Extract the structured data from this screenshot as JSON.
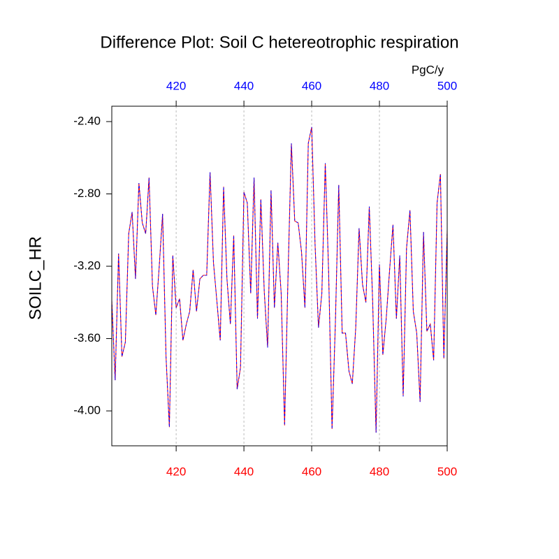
{
  "chart_data": {
    "type": "line",
    "title": "Difference Plot: Soil C hetereotrophic respiration",
    "ylabel": "SOILC_HR",
    "top_axis_label": "PgC/y",
    "x": [
      401,
      402,
      403,
      404,
      405,
      406,
      407,
      408,
      409,
      410,
      411,
      412,
      413,
      414,
      415,
      416,
      417,
      418,
      419,
      420,
      421,
      422,
      423,
      424,
      425,
      426,
      427,
      428,
      429,
      430,
      431,
      432,
      433,
      434,
      435,
      436,
      437,
      438,
      439,
      440,
      441,
      442,
      443,
      444,
      445,
      446,
      447,
      448,
      449,
      450,
      451,
      452,
      453,
      454,
      455,
      456,
      457,
      458,
      459,
      460,
      461,
      462,
      463,
      464,
      465,
      466,
      467,
      468,
      469,
      470,
      471,
      472,
      473,
      474,
      475,
      476,
      477,
      478,
      479,
      480,
      481,
      482,
      483,
      484,
      485,
      486,
      487,
      488,
      489,
      490,
      491,
      492,
      493,
      494,
      495,
      496,
      497,
      498,
      499,
      500
    ],
    "series": [
      {
        "color": "#ff0000",
        "dash": false,
        "values": [
          -3.39,
          -3.83,
          -3.13,
          -3.7,
          -3.62,
          -3.02,
          -2.9,
          -3.27,
          -2.74,
          -2.96,
          -3.02,
          -2.71,
          -3.31,
          -3.47,
          -3.2,
          -2.91,
          -3.7,
          -4.09,
          -3.14,
          -3.43,
          -3.38,
          -3.61,
          -3.52,
          -3.45,
          -3.22,
          -3.45,
          -3.27,
          -3.25,
          -3.25,
          -2.68,
          -3.18,
          -3.39,
          -3.61,
          -2.76,
          -3.27,
          -3.52,
          -3.03,
          -3.88,
          -3.76,
          -2.79,
          -2.85,
          -3.35,
          -2.71,
          -3.49,
          -2.83,
          -3.34,
          -3.65,
          -2.78,
          -3.43,
          -3.07,
          -3.35,
          -4.08,
          -3.27,
          -2.52,
          -2.95,
          -2.96,
          -3.12,
          -3.43,
          -2.52,
          -2.43,
          -3.08,
          -3.54,
          -3.35,
          -2.63,
          -3.23,
          -4.1,
          -3.51,
          -2.75,
          -3.57,
          -3.57,
          -3.78,
          -3.85,
          -3.54,
          -2.99,
          -3.3,
          -3.4,
          -2.87,
          -3.39,
          -4.12,
          -3.19,
          -3.69,
          -3.49,
          -3.22,
          -2.97,
          -3.49,
          -3.14,
          -3.92,
          -3.1,
          -2.89,
          -3.45,
          -3.57,
          -3.95,
          -3.01,
          -3.56,
          -3.52,
          -3.72,
          -2.85,
          -2.69,
          -3.71,
          -3.0
        ]
      },
      {
        "color": "#0000ff",
        "dash": true,
        "values": [
          -3.39,
          -3.83,
          -3.13,
          -3.7,
          -3.62,
          -3.02,
          -2.9,
          -3.27,
          -2.74,
          -2.96,
          -3.02,
          -2.71,
          -3.31,
          -3.47,
          -3.2,
          -2.91,
          -3.7,
          -4.09,
          -3.14,
          -3.43,
          -3.38,
          -3.61,
          -3.52,
          -3.45,
          -3.22,
          -3.45,
          -3.27,
          -3.25,
          -3.25,
          -2.68,
          -3.18,
          -3.39,
          -3.61,
          -2.76,
          -3.27,
          -3.52,
          -3.03,
          -3.88,
          -3.76,
          -2.79,
          -2.85,
          -3.35,
          -2.71,
          -3.49,
          -2.83,
          -3.34,
          -3.65,
          -2.78,
          -3.43,
          -3.07,
          -3.35,
          -4.08,
          -3.27,
          -2.52,
          -2.95,
          -2.96,
          -3.12,
          -3.43,
          -2.52,
          -2.43,
          -3.08,
          -3.54,
          -3.35,
          -2.63,
          -3.23,
          -4.1,
          -3.51,
          -2.75,
          -3.57,
          -3.57,
          -3.78,
          -3.85,
          -3.54,
          -2.99,
          -3.3,
          -3.4,
          -2.87,
          -3.39,
          -4.12,
          -3.19,
          -3.69,
          -3.49,
          -3.22,
          -2.97,
          -3.49,
          -3.14,
          -3.92,
          -3.1,
          -2.89,
          -3.45,
          -3.57,
          -3.95,
          -3.01,
          -3.56,
          -3.52,
          -3.72,
          -2.85,
          -2.69,
          -3.71,
          -3.0
        ]
      }
    ],
    "xlim": [
      401,
      500
    ],
    "xticks": [
      420,
      440,
      460,
      480,
      500
    ],
    "ylim": [
      -4.193,
      -2.315
    ],
    "yticks": [
      {
        "value": -2.4,
        "label": "-2.40"
      },
      {
        "value": -2.8,
        "label": "-2.80"
      },
      {
        "value": -3.2,
        "label": "-3.20"
      },
      {
        "value": -3.6,
        "label": "-3.60"
      },
      {
        "value": -4.0,
        "label": "-4.00"
      }
    ],
    "top_tick_color": "#0000ff",
    "bottom_tick_color": "#ff0000",
    "grid": true
  }
}
